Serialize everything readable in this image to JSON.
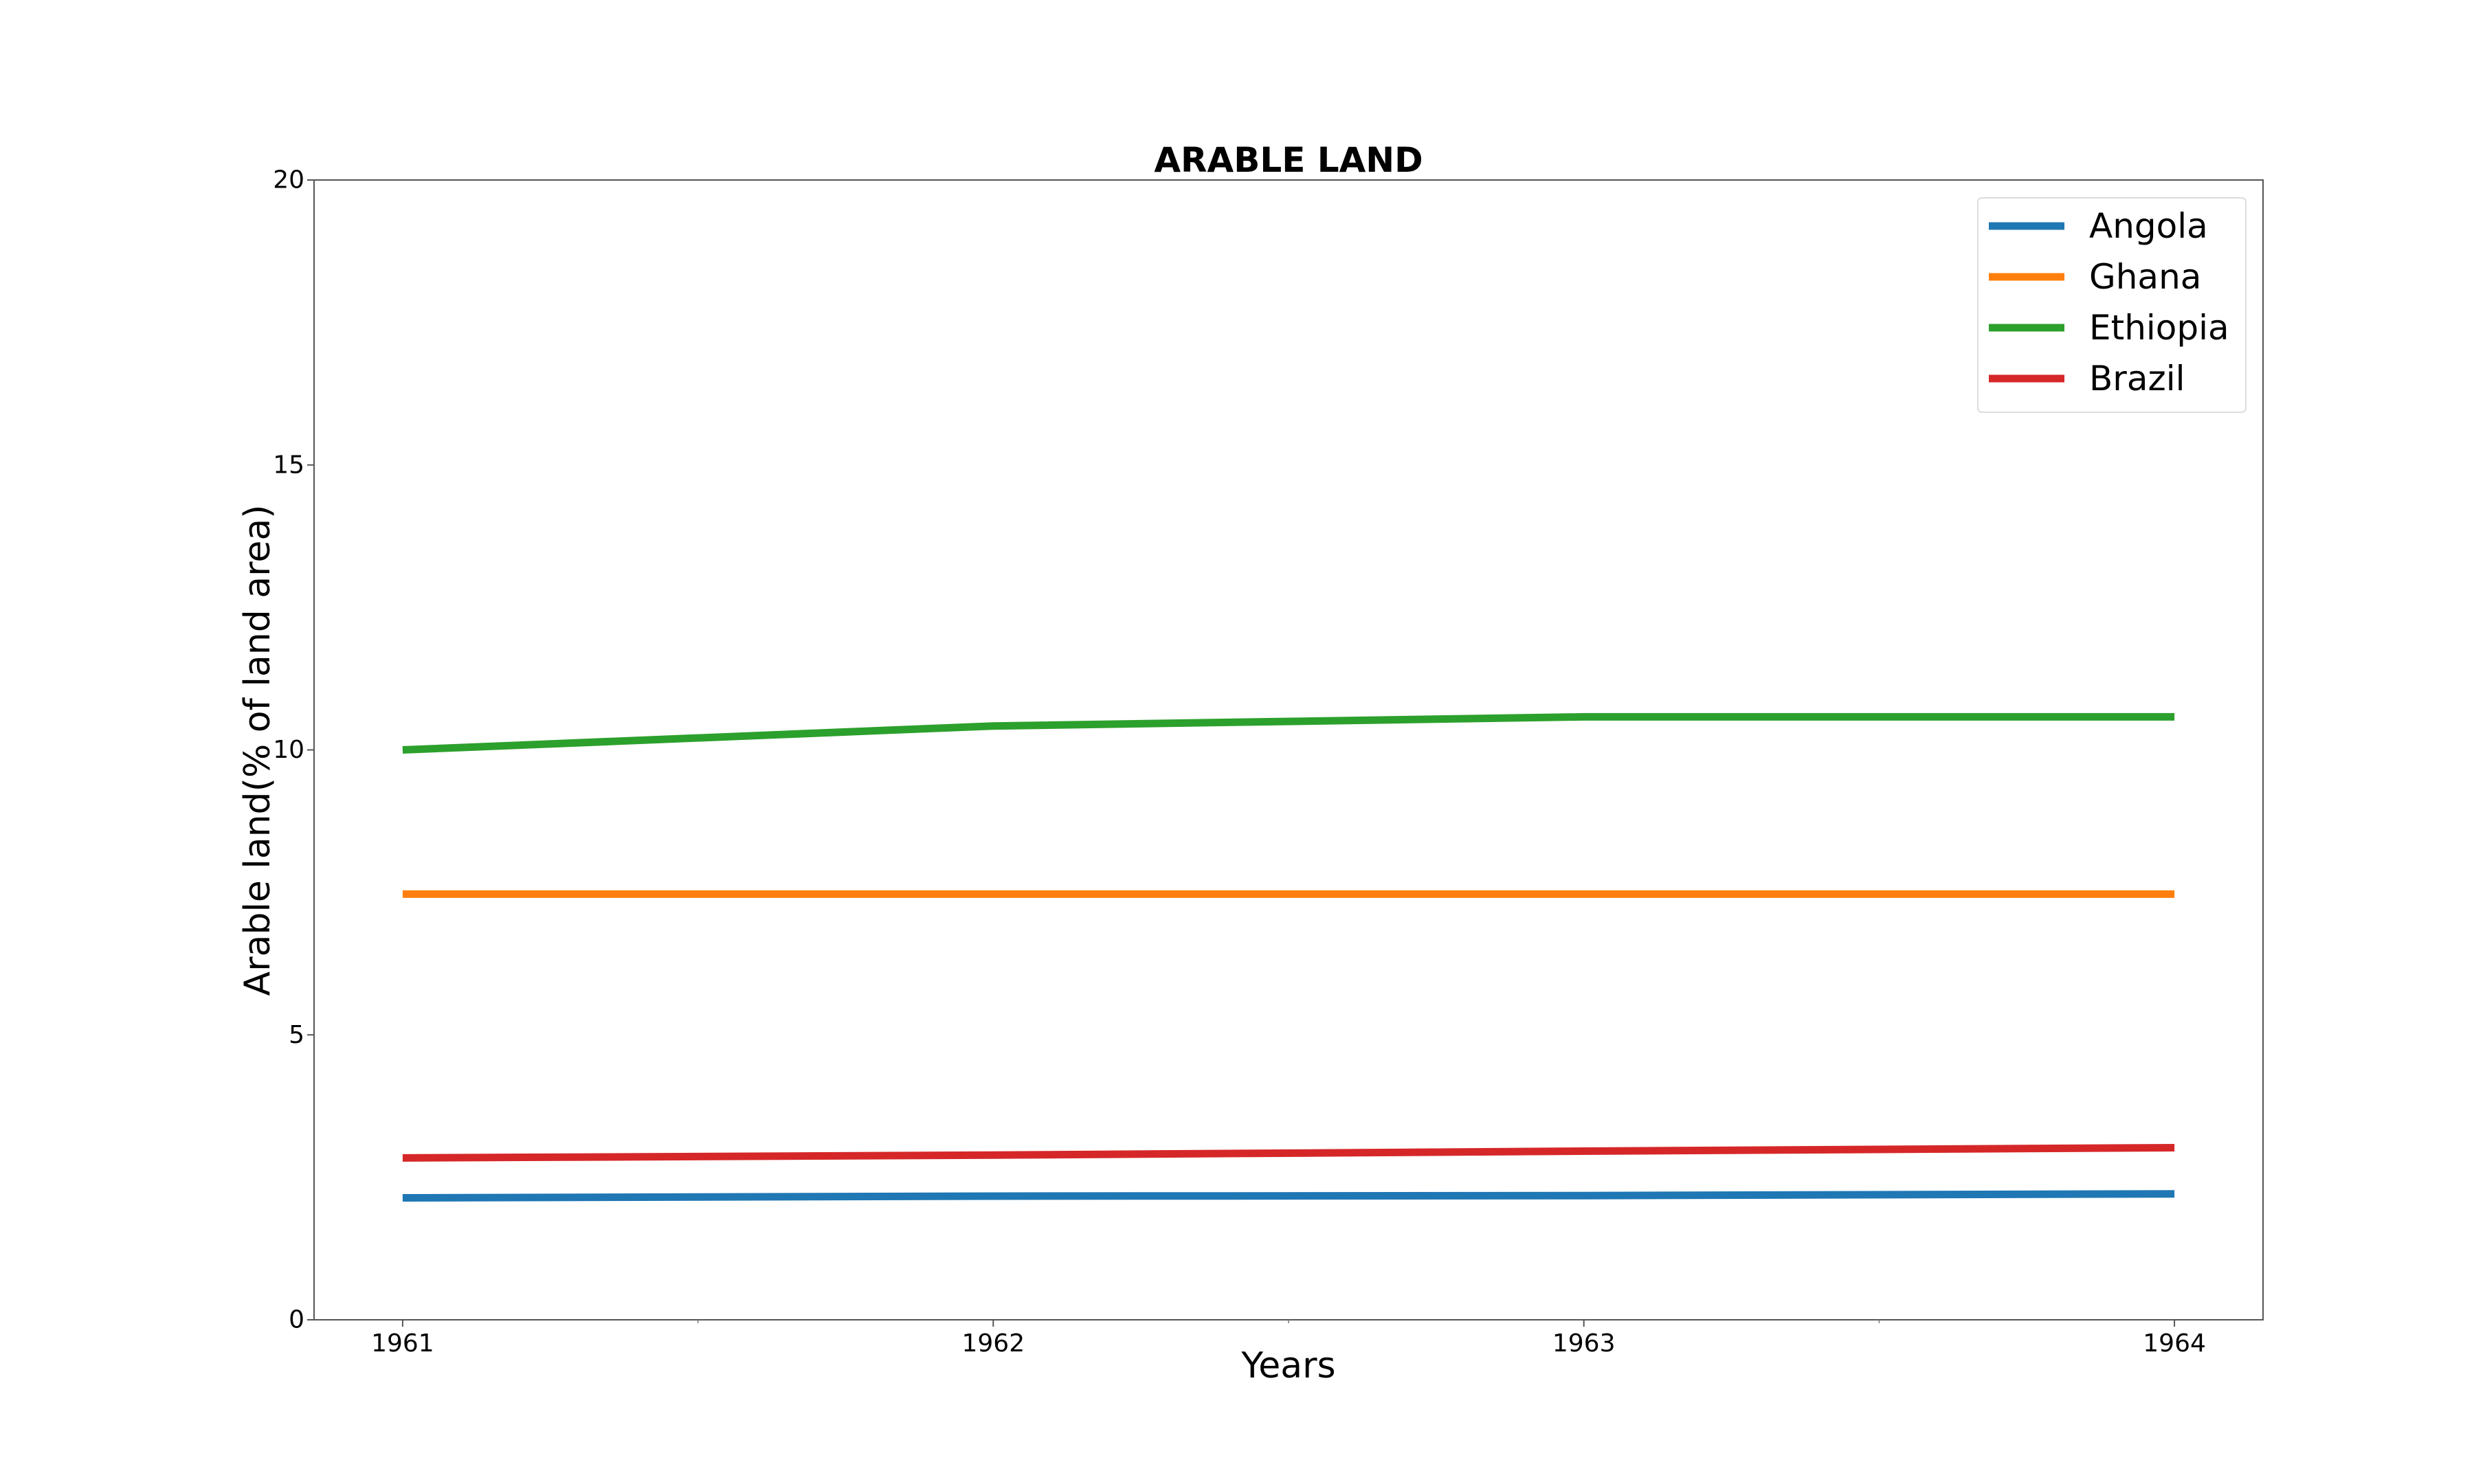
{
  "chart_data": {
    "type": "line",
    "title": "ARABLE LAND",
    "xlabel": "Years",
    "ylabel": "Arable land(% of land area)",
    "x": [
      1961,
      1962,
      1963,
      1964
    ],
    "x_tick_labels": [
      "1961",
      "1962",
      "1963",
      "1964"
    ],
    "xlim": [
      1960.85,
      1964.15
    ],
    "ylim": [
      0,
      20
    ],
    "y_ticks": [
      0,
      5,
      10,
      15,
      20
    ],
    "y_tick_labels": [
      "0",
      "5",
      "10",
      "15",
      "20"
    ],
    "grid": false,
    "legend_position": "top-right",
    "series": [
      {
        "name": "Angola",
        "color": "#1f77b4",
        "values": [
          2.14,
          2.17,
          2.18,
          2.21
        ]
      },
      {
        "name": "Ghana",
        "color": "#ff7f0e",
        "values": [
          7.47,
          7.47,
          7.47,
          7.47
        ]
      },
      {
        "name": "Ethiopia",
        "color": "#2ca02c",
        "values": [
          10.0,
          10.42,
          10.58,
          10.58
        ]
      },
      {
        "name": "Brazil",
        "color": "#d62728",
        "values": [
          2.84,
          2.89,
          2.96,
          3.02
        ]
      }
    ]
  }
}
